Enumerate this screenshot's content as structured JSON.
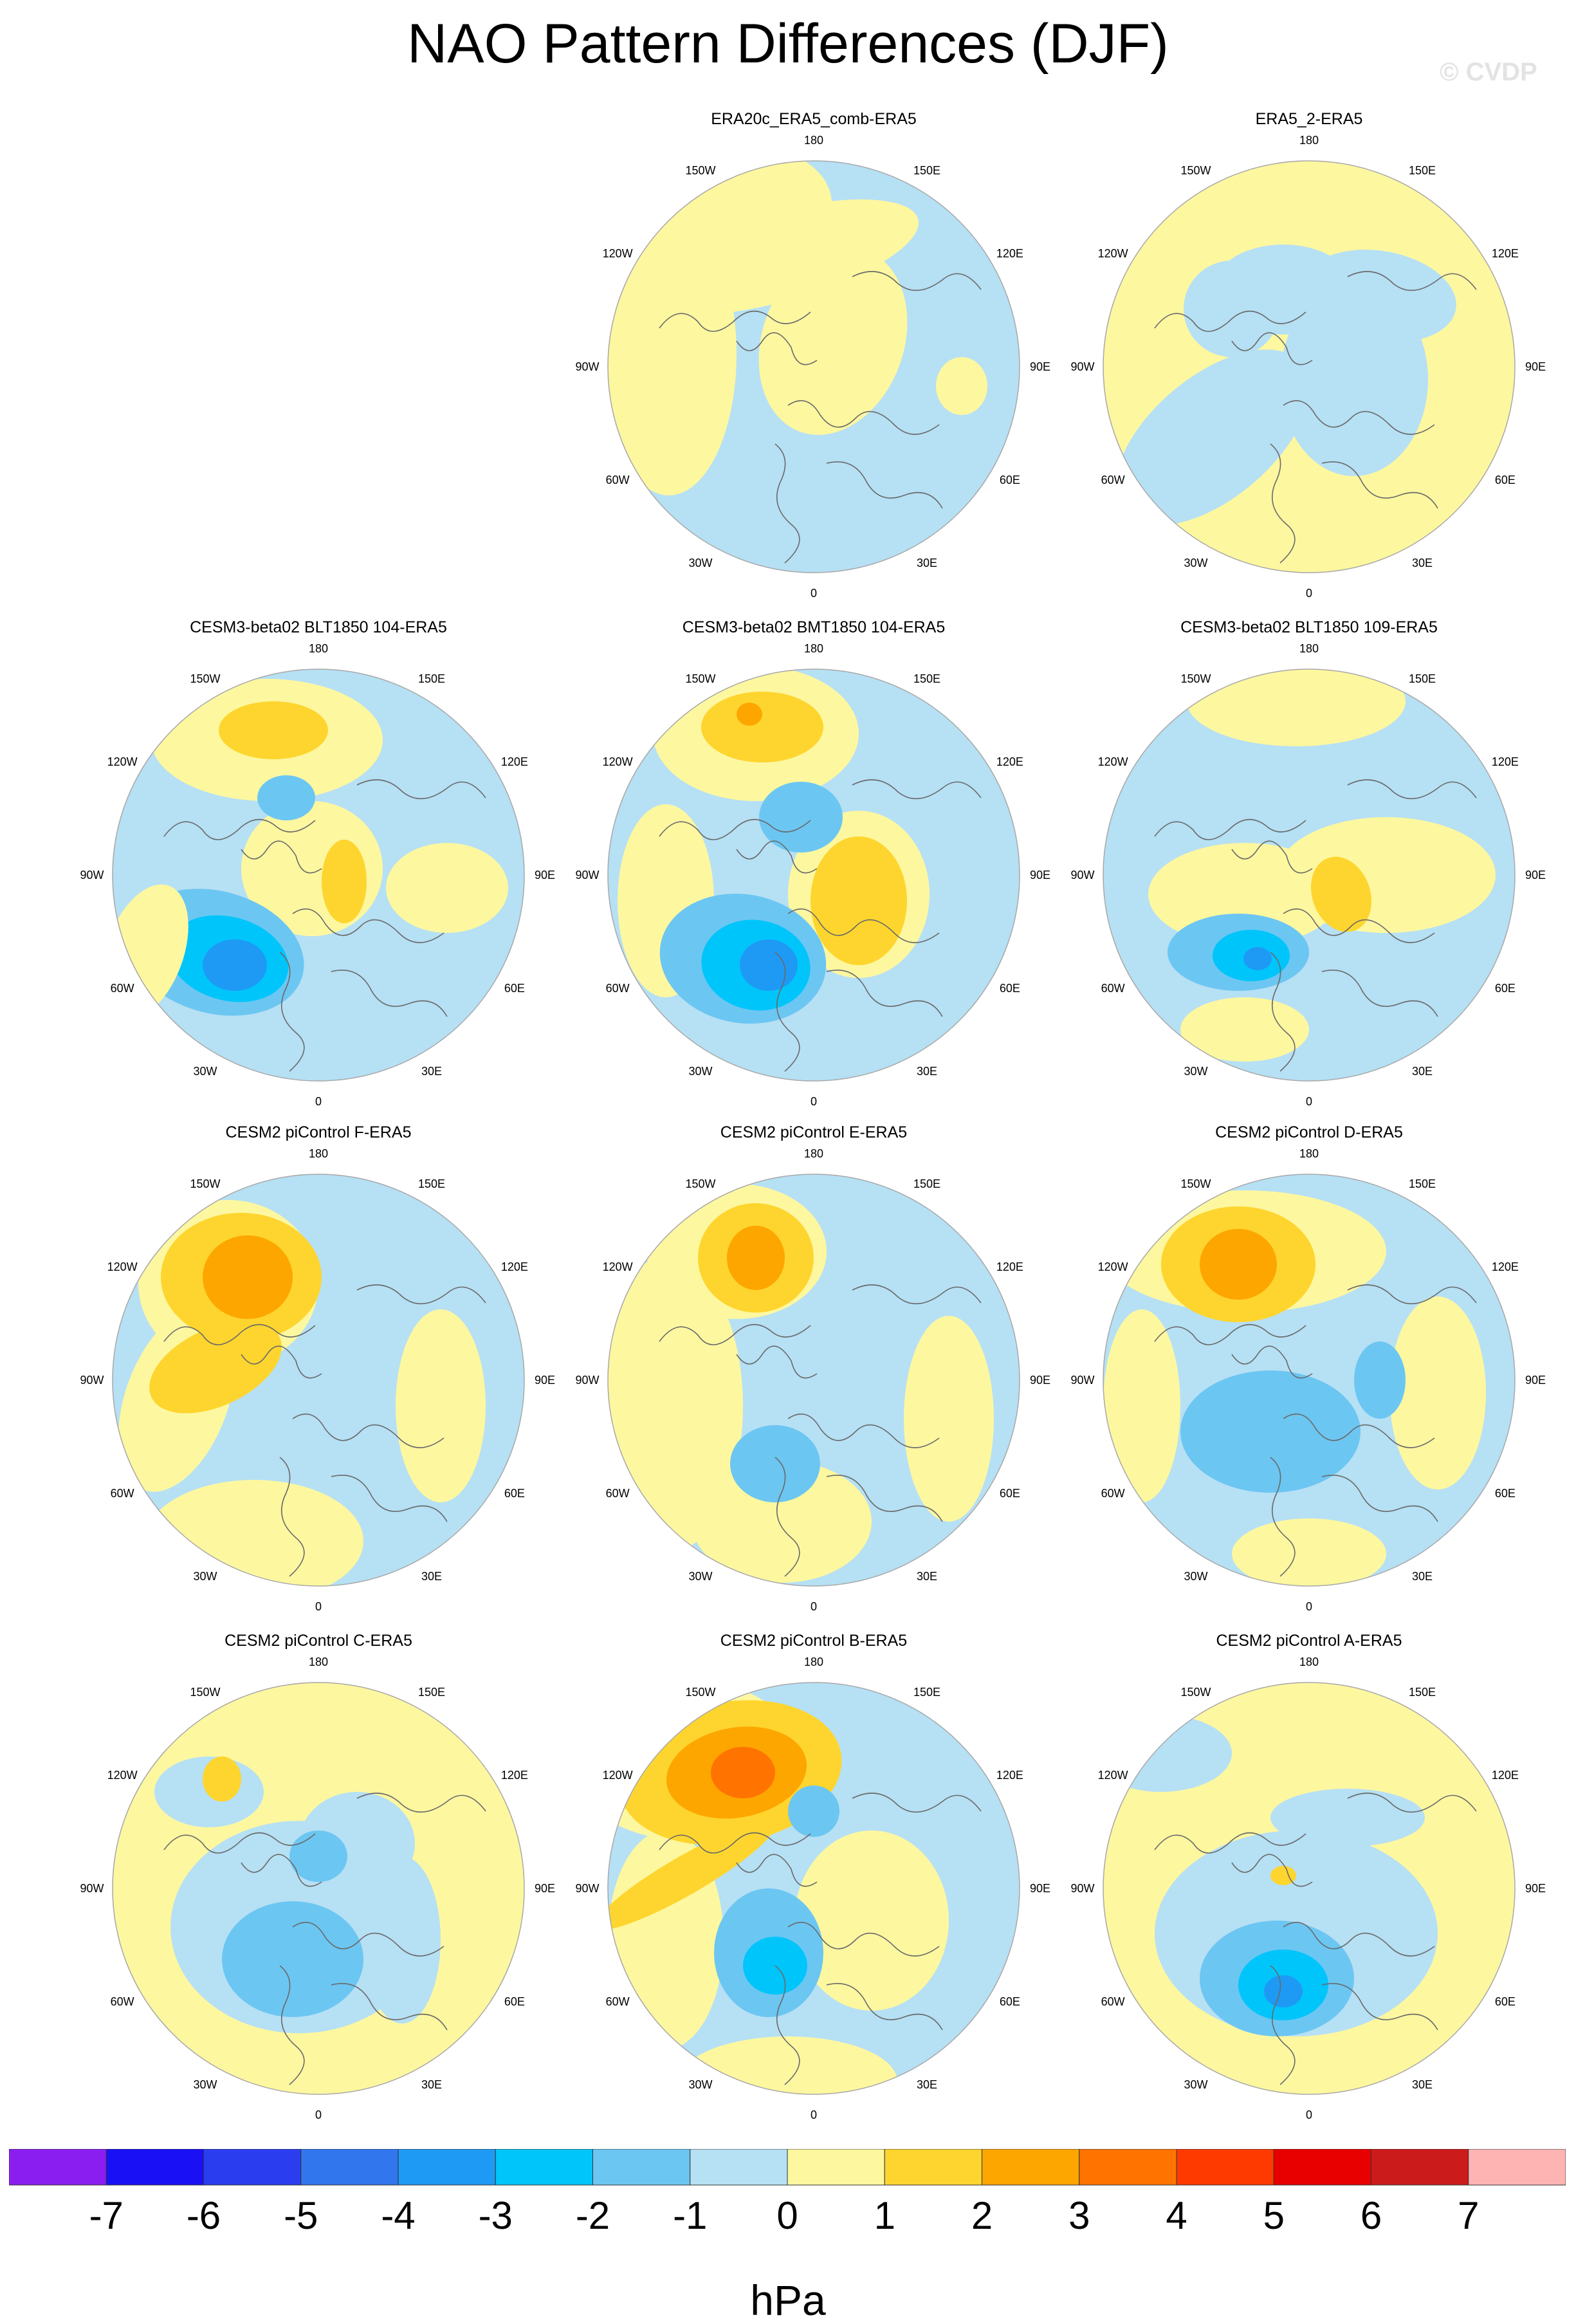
{
  "title": "NAO Pattern Differences (DJF)",
  "watermark": "© CVDP",
  "lon_labels": [
    "180",
    "150E",
    "120E",
    "90E",
    "60E",
    "30E",
    "0",
    "30W",
    "60W",
    "90W",
    "120W",
    "150W"
  ],
  "panels": [
    {
      "title": "ERA20c_ERA5_comb-ERA5",
      "pattern": "weak-a"
    },
    {
      "title": "ERA5_2-ERA5",
      "pattern": "weak-b"
    },
    {
      "title": "CESM3-beta02 BLT1850 104-ERA5",
      "pattern": "strong-a"
    },
    {
      "title": "CESM3-beta02 BMT1850 104-ERA5",
      "pattern": "strong-b"
    },
    {
      "title": "CESM3-beta02 BLT1850 109-ERA5",
      "pattern": "strong-c"
    },
    {
      "title": "CESM2 piControl F-ERA5",
      "pattern": "pac-high-a"
    },
    {
      "title": "CESM2 piControl E-ERA5",
      "pattern": "pac-high-b"
    },
    {
      "title": "CESM2 piControl D-ERA5",
      "pattern": "pac-high-c"
    },
    {
      "title": "CESM2 piControl C-ERA5",
      "pattern": "arctic-low"
    },
    {
      "title": "CESM2 piControl B-ERA5",
      "pattern": "pac-high-d"
    },
    {
      "title": "CESM2 piControl A-ERA5",
      "pattern": "atl-low"
    }
  ],
  "colorbar": {
    "unit": "hPa",
    "labels": [
      "-7",
      "-6",
      "-5",
      "-4",
      "-3",
      "-2",
      "-1",
      "0",
      "1",
      "2",
      "3",
      "4",
      "5",
      "6",
      "7"
    ],
    "colors": [
      "#8a1ef0",
      "#1a10f5",
      "#2a3ef0",
      "#3276ee",
      "#1e9af5",
      "#00c5fb",
      "#6cc6f2",
      "#b6e0f4",
      "#fdf7a0",
      "#fed52e",
      "#fda600",
      "#ff7400",
      "#ff3a00",
      "#e80000",
      "#cc1b1b",
      "#ffb4b4"
    ]
  }
}
